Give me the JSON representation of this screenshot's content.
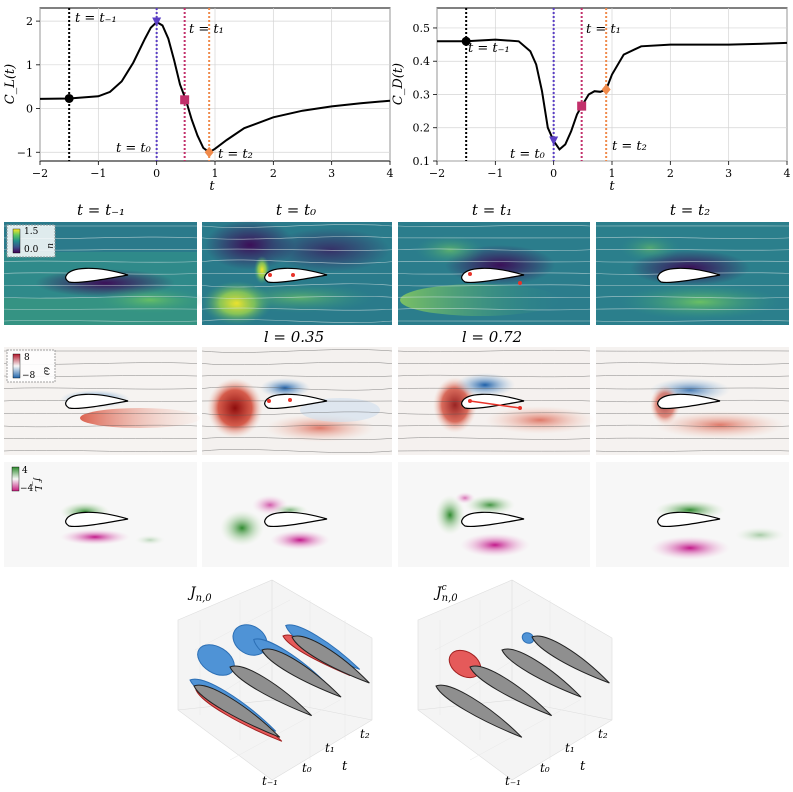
{
  "chart_data": [
    {
      "type": "line",
      "id": "cl",
      "ylabel": "C_L(t)",
      "xlabel": "t",
      "xlim": [
        -2,
        4
      ],
      "ylim": [
        -1.2,
        2.3
      ],
      "xticks": [
        "−2",
        "−1",
        "0",
        "1",
        "2",
        "3",
        "4"
      ],
      "yticks": [
        "−1",
        "0",
        "1",
        "2"
      ],
      "grid": true,
      "x": [
        -2.0,
        -1.5,
        -1.0,
        -0.8,
        -0.6,
        -0.4,
        -0.2,
        -0.1,
        0.0,
        0.1,
        0.2,
        0.3,
        0.4,
        0.5,
        0.6,
        0.7,
        0.8,
        0.9,
        1.0,
        1.2,
        1.5,
        2.0,
        2.5,
        3.0,
        3.5,
        4.0
      ],
      "y": [
        0.22,
        0.23,
        0.28,
        0.38,
        0.62,
        1.05,
        1.6,
        1.85,
        1.98,
        1.9,
        1.6,
        1.1,
        0.55,
        0.2,
        -0.25,
        -0.62,
        -0.9,
        -1.0,
        -0.92,
        -0.72,
        -0.45,
        -0.2,
        -0.05,
        0.05,
        0.12,
        0.18
      ],
      "vlines": [
        {
          "x": -1.5,
          "label": "t = t₋₁",
          "color": "#000000"
        },
        {
          "x": 0.0,
          "label": "t = t₀",
          "color": "#5b3fc4"
        },
        {
          "x": 0.48,
          "label": "t = t₁",
          "color": "#c2306b"
        },
        {
          "x": 0.9,
          "label": "t = t₂",
          "color": "#f08a4b"
        }
      ],
      "markers": [
        {
          "x": -1.5,
          "y": 0.23,
          "shape": "circle",
          "color": "#000000"
        },
        {
          "x": 0.0,
          "y": 1.98,
          "shape": "triangle-down",
          "color": "#5b3fc4"
        },
        {
          "x": 0.48,
          "y": 0.2,
          "shape": "square",
          "color": "#c2306b"
        },
        {
          "x": 0.9,
          "y": -1.0,
          "shape": "diamond",
          "color": "#f08a4b"
        }
      ]
    },
    {
      "type": "line",
      "id": "cd",
      "ylabel": "C_D(t)",
      "xlabel": "t",
      "xlim": [
        -2,
        4
      ],
      "ylim": [
        0.1,
        0.56
      ],
      "xticks": [
        "−2",
        "−1",
        "0",
        "1",
        "2",
        "3",
        "4"
      ],
      "yticks": [
        "0.1",
        "0.2",
        "0.3",
        "0.4",
        "0.5"
      ],
      "grid": true,
      "x": [
        -2.0,
        -1.5,
        -1.0,
        -0.6,
        -0.4,
        -0.3,
        -0.2,
        -0.1,
        0.0,
        0.1,
        0.2,
        0.3,
        0.4,
        0.48,
        0.6,
        0.7,
        0.8,
        0.9,
        1.0,
        1.2,
        1.5,
        2.0,
        2.5,
        3.0,
        3.5,
        4.0
      ],
      "y": [
        0.46,
        0.46,
        0.465,
        0.46,
        0.43,
        0.39,
        0.31,
        0.2,
        0.16,
        0.135,
        0.15,
        0.19,
        0.24,
        0.265,
        0.3,
        0.31,
        0.308,
        0.315,
        0.36,
        0.42,
        0.445,
        0.45,
        0.45,
        0.45,
        0.452,
        0.455
      ],
      "vlines": [
        {
          "x": -1.5,
          "label": "t = t₋₁",
          "color": "#000000"
        },
        {
          "x": 0.0,
          "label": "t = t₀",
          "color": "#5b3fc4"
        },
        {
          "x": 0.48,
          "label": "t = t₁",
          "color": "#c2306b"
        },
        {
          "x": 0.9,
          "label": "t = t₂",
          "color": "#f08a4b"
        }
      ],
      "markers": [
        {
          "x": -1.5,
          "y": 0.46,
          "shape": "circle",
          "color": "#000000"
        },
        {
          "x": 0.0,
          "y": 0.16,
          "shape": "triangle-down",
          "color": "#5b3fc4"
        },
        {
          "x": 0.48,
          "y": 0.265,
          "shape": "square",
          "color": "#c2306b"
        },
        {
          "x": 0.9,
          "y": 0.315,
          "shape": "diamond",
          "color": "#f08a4b"
        }
      ]
    }
  ],
  "panels": {
    "column_titles": [
      "t = t₋₁",
      "t = t₀",
      "t = t₁",
      "t = t₂"
    ],
    "row_annotations": {
      "l_t0": "l = 0.35",
      "l_t1": "l = 0.72"
    },
    "row1_colorbar": {
      "max": "1.5",
      "min": "0.0",
      "label": "u"
    },
    "row2_colorbar": {
      "max": "8",
      "min": "−8",
      "label": "ω"
    },
    "row3_colorbar": {
      "max": "4",
      "min": "−4",
      "label": "f_L"
    }
  },
  "plots3d": {
    "left_title_main": "J",
    "left_title_sub": "n,0",
    "right_title_main": "J",
    "right_title_sup": "c",
    "right_title_sub": "n,0",
    "axis_ticks": [
      "t₂",
      "t₁",
      "t₀",
      "t₋₁"
    ],
    "axis_label": "t"
  },
  "colors": {
    "viridis_low": "#3b1e5f",
    "viridis_mid": "#2a8a8a",
    "viridis_high": "#f2e32a",
    "red": "#c0392b",
    "blue": "#2c6fb5",
    "green": "#2f8a2f",
    "magenta": "#c2188a",
    "gray": "#8f8f8f"
  }
}
